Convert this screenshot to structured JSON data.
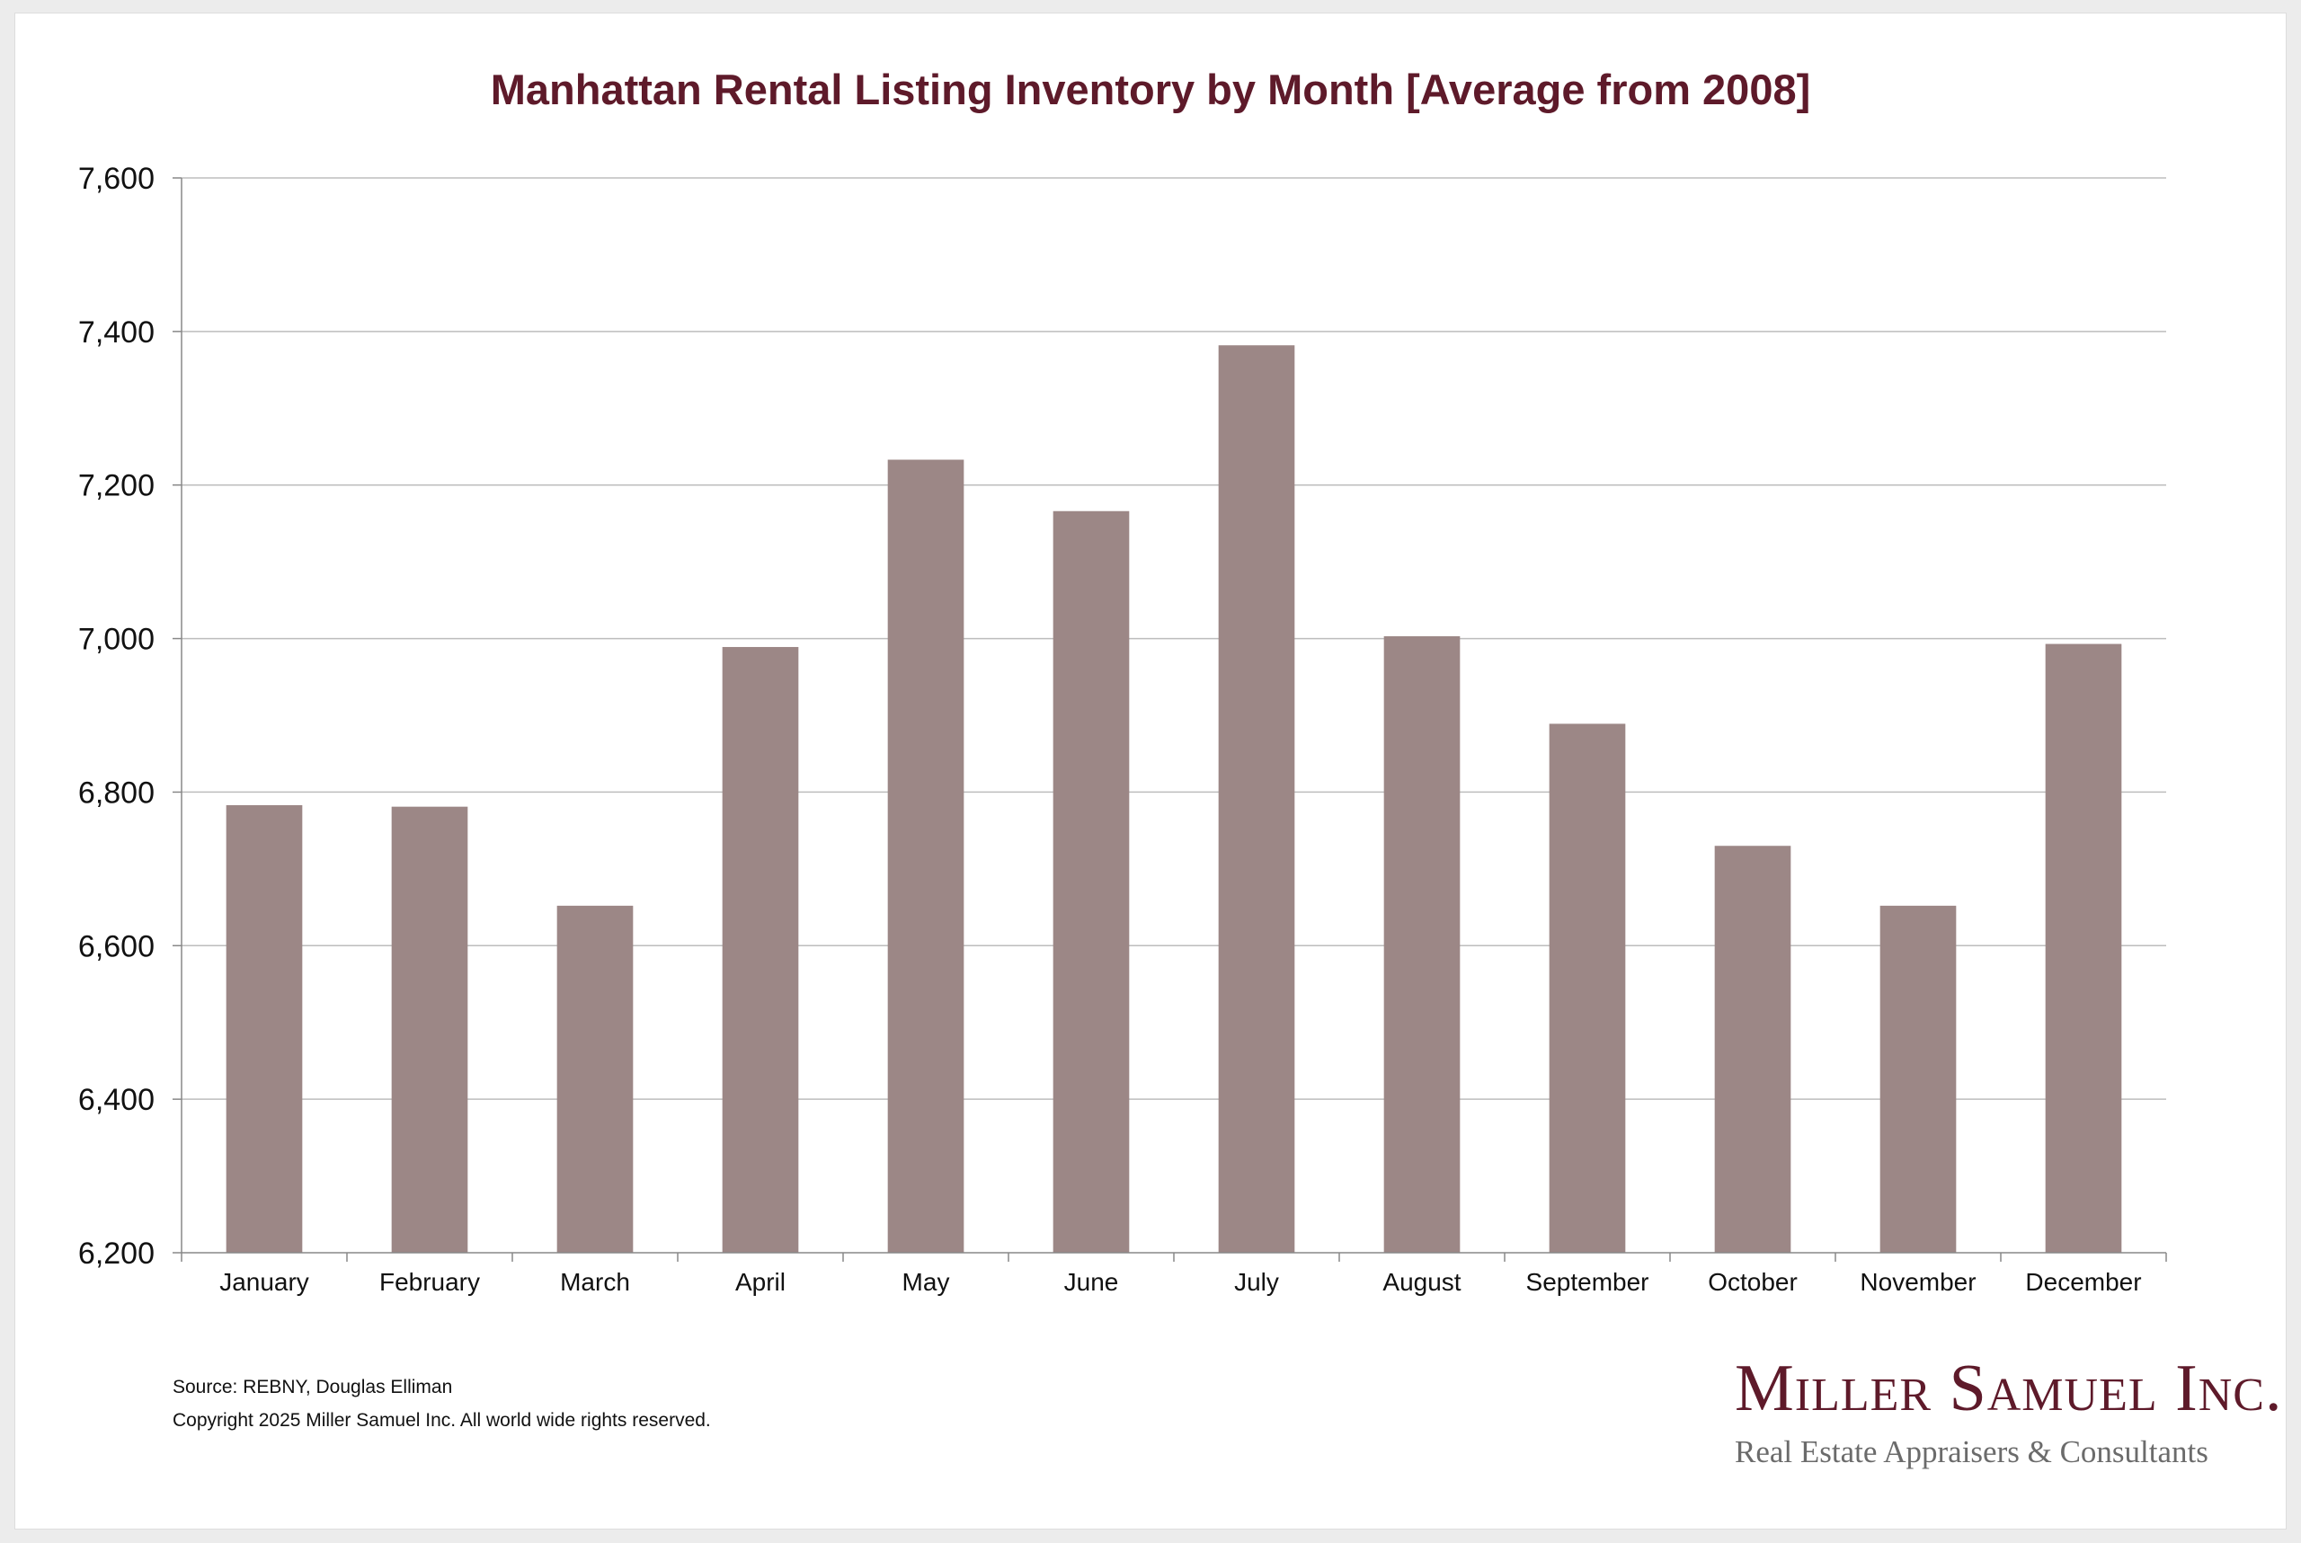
{
  "chart_data": {
    "type": "bar",
    "title": "Manhattan Rental Listing Inventory by Month [Average from 2008]",
    "xlabel": "",
    "ylabel": "",
    "categories": [
      "January",
      "February",
      "March",
      "April",
      "May",
      "June",
      "July",
      "August",
      "September",
      "October",
      "November",
      "December"
    ],
    "values": [
      6783,
      6781,
      6652,
      6989,
      7233,
      7166,
      7382,
      7003,
      6889,
      6730,
      6652,
      6993
    ],
    "ylim": [
      6200,
      7600
    ],
    "yticks": [
      6200,
      6400,
      6600,
      6800,
      7000,
      7200,
      7400,
      7600
    ],
    "ytick_labels": [
      "6,200",
      "6,400",
      "6,600",
      "6,800",
      "7,000",
      "7,200",
      "7,400",
      "7,600"
    ],
    "grid": true,
    "legend": "none",
    "colors": {
      "bar": "#9c8786",
      "title": "#5e1a2a",
      "grid": "#bdbdbd"
    }
  },
  "footer": {
    "source": "Source: REBNY, Douglas Elliman",
    "copyright": "Copyright 2025 Miller Samuel Inc.  All world wide rights reserved."
  },
  "logo": {
    "name": "Miller Samuel Inc.",
    "tagline": "Real Estate Appraisers & Consultants"
  }
}
